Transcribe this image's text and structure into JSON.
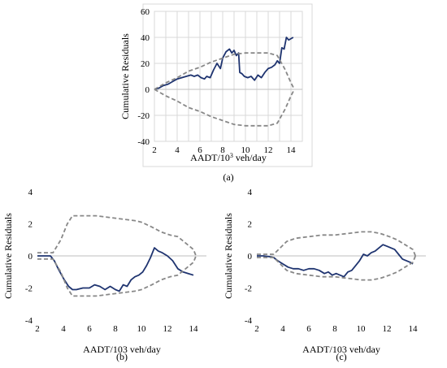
{
  "chart_data": [
    {
      "panel_label": "(a)",
      "type": "line",
      "xlabel_parts": [
        "AADT/10",
        "3",
        " veh/day"
      ],
      "ylabel": "Cumulative Residuals",
      "xlim": [
        2,
        15
      ],
      "ylim": [
        -40,
        60
      ],
      "xticks": [
        2,
        4,
        6,
        8,
        10,
        12,
        14
      ],
      "yticks": [
        -40,
        -20,
        0,
        20,
        40,
        60
      ],
      "grid": true,
      "series": [
        {
          "role": "cumulative-residuals",
          "style": "solid",
          "color": "#1f3470",
          "x": [
            2.0,
            2.4,
            2.8,
            3.2,
            3.6,
            4.0,
            4.4,
            4.8,
            5.2,
            5.5,
            5.8,
            6.1,
            6.4,
            6.6,
            6.9,
            7.2,
            7.5,
            7.8,
            8.0,
            8.3,
            8.6,
            8.8,
            9.0,
            9.2,
            9.4,
            9.5,
            9.7,
            9.9,
            10.2,
            10.5,
            10.8,
            11.1,
            11.4,
            11.7,
            12.0,
            12.3,
            12.6,
            12.8,
            13.0,
            13.2,
            13.4,
            13.6,
            13.8,
            14.0,
            14.2
          ],
          "y": [
            0,
            1,
            3,
            4,
            6,
            8,
            9,
            10,
            11,
            10,
            11,
            9,
            8,
            10,
            9,
            15,
            20,
            16,
            24,
            29,
            31,
            28,
            30,
            26,
            28,
            13,
            12,
            10,
            9,
            10,
            7,
            11,
            9,
            13,
            16,
            17,
            19,
            22,
            20,
            32,
            31,
            40,
            38,
            39,
            40
          ]
        },
        {
          "role": "upper-bound",
          "style": "dashed",
          "color": "#888888",
          "x": [
            2.0,
            3.0,
            4.0,
            5.0,
            6.0,
            7.0,
            8.0,
            9.0,
            10.0,
            11.0,
            12.0,
            12.8,
            13.5,
            14.0,
            14.3
          ],
          "y": [
            0,
            5,
            9,
            14,
            17,
            21,
            24,
            27,
            28,
            28,
            28,
            26,
            15,
            5,
            0
          ]
        },
        {
          "role": "lower-bound",
          "style": "dashed",
          "color": "#888888",
          "x": [
            2.0,
            3.0,
            4.0,
            5.0,
            6.0,
            7.0,
            8.0,
            9.0,
            10.0,
            11.0,
            12.0,
            12.8,
            13.5,
            14.0,
            14.3
          ],
          "y": [
            0,
            -5,
            -9,
            -14,
            -17,
            -21,
            -24,
            -27,
            -28,
            -28,
            -28,
            -26,
            -15,
            -5,
            0
          ]
        }
      ]
    },
    {
      "panel_label": "(b)",
      "type": "line",
      "xlabel_parts": [
        "AADT/103 veh/day"
      ],
      "ylabel": "Cumulative Residuals",
      "xlim": [
        2,
        15
      ],
      "ylim": [
        -4,
        4
      ],
      "xticks": [
        2,
        4,
        6,
        8,
        10,
        12,
        14
      ],
      "yticks": [
        -4,
        -2,
        0,
        2,
        4
      ],
      "grid": false,
      "series": [
        {
          "role": "cumulative-residuals",
          "style": "solid",
          "color": "#1f3470",
          "x": [
            2.0,
            2.5,
            3.0,
            3.3,
            3.6,
            4.0,
            4.4,
            4.7,
            5.0,
            5.5,
            6.0,
            6.4,
            6.8,
            7.2,
            7.6,
            8.0,
            8.3,
            8.6,
            8.9,
            9.2,
            9.5,
            9.8,
            10.1,
            10.4,
            10.7,
            11.0,
            11.3,
            11.6,
            12.0,
            12.4,
            12.8,
            13.2,
            13.6,
            14.0
          ],
          "y": [
            0,
            0,
            0,
            -0.3,
            -0.8,
            -1.4,
            -1.9,
            -2.1,
            -2.1,
            -2.0,
            -2.0,
            -1.8,
            -1.9,
            -2.1,
            -1.9,
            -2.1,
            -2.2,
            -1.8,
            -1.9,
            -1.5,
            -1.3,
            -1.2,
            -1.0,
            -0.6,
            -0.1,
            0.5,
            0.3,
            0.2,
            0.0,
            -0.3,
            -0.8,
            -1.0,
            -1.1,
            -1.2
          ]
        },
        {
          "role": "upper-bound",
          "style": "dashed",
          "color": "#888888",
          "x": [
            2.0,
            2.8,
            3.2,
            3.8,
            4.3,
            4.7,
            5.5,
            6.5,
            7.5,
            8.5,
            9.5,
            10.0,
            10.8,
            11.5,
            12.2,
            12.8,
            13.4,
            14.0,
            14.2
          ],
          "y": [
            0.2,
            0.2,
            0.2,
            1.0,
            2.0,
            2.5,
            2.5,
            2.5,
            2.4,
            2.3,
            2.2,
            2.1,
            1.8,
            1.5,
            1.3,
            1.2,
            0.8,
            0.4,
            0
          ]
        },
        {
          "role": "lower-bound",
          "style": "dashed",
          "color": "#888888",
          "x": [
            2.0,
            2.8,
            3.2,
            3.8,
            4.3,
            4.7,
            5.5,
            6.5,
            7.5,
            8.5,
            9.5,
            10.0,
            10.8,
            11.5,
            12.2,
            12.8,
            13.4,
            14.0,
            14.2
          ],
          "y": [
            -0.2,
            -0.2,
            -0.2,
            -1.0,
            -2.0,
            -2.5,
            -2.5,
            -2.5,
            -2.4,
            -2.3,
            -2.2,
            -2.1,
            -1.8,
            -1.5,
            -1.3,
            -1.2,
            -0.8,
            -0.4,
            0
          ]
        }
      ]
    },
    {
      "panel_label": "(c)",
      "type": "line",
      "xlabel_parts": [
        "AADT/103 veh/day"
      ],
      "ylabel": "Cumulative Residuals",
      "xlim": [
        2,
        15
      ],
      "ylim": [
        -4,
        4
      ],
      "xticks": [
        2,
        4,
        6,
        8,
        10,
        12,
        14
      ],
      "yticks": [
        -4,
        -2,
        0,
        2,
        4
      ],
      "grid": false,
      "series": [
        {
          "role": "cumulative-residuals",
          "style": "solid",
          "color": "#1f3470",
          "x": [
            2.0,
            2.5,
            3.0,
            3.3,
            3.6,
            4.0,
            4.4,
            4.8,
            5.2,
            5.6,
            6.0,
            6.4,
            6.8,
            7.2,
            7.5,
            7.8,
            8.1,
            8.4,
            8.7,
            9.0,
            9.3,
            9.6,
            9.9,
            10.2,
            10.5,
            10.8,
            11.1,
            11.4,
            11.7,
            12.0,
            12.3,
            12.6,
            12.9,
            13.2,
            13.5,
            13.8,
            14.0
          ],
          "y": [
            0,
            0,
            -0.05,
            -0.1,
            -0.3,
            -0.5,
            -0.7,
            -0.8,
            -0.8,
            -0.9,
            -0.8,
            -0.8,
            -0.9,
            -1.1,
            -1.0,
            -1.2,
            -1.1,
            -1.2,
            -1.3,
            -1.0,
            -0.9,
            -0.6,
            -0.3,
            0.1,
            0.0,
            0.2,
            0.3,
            0.5,
            0.7,
            0.6,
            0.5,
            0.4,
            0.1,
            -0.2,
            -0.3,
            -0.4,
            -0.5
          ]
        },
        {
          "role": "upper-bound",
          "style": "dashed",
          "color": "#888888",
          "x": [
            2.0,
            2.8,
            3.3,
            3.8,
            4.3,
            5.0,
            6.0,
            7.0,
            8.0,
            9.0,
            10.0,
            10.8,
            11.5,
            12.2,
            12.8,
            13.4,
            14.0,
            14.2
          ],
          "y": [
            0.1,
            0.1,
            0.1,
            0.5,
            0.9,
            1.1,
            1.2,
            1.3,
            1.3,
            1.4,
            1.5,
            1.5,
            1.4,
            1.2,
            1.0,
            0.7,
            0.4,
            0
          ]
        },
        {
          "role": "lower-bound",
          "style": "dashed",
          "color": "#888888",
          "x": [
            2.0,
            2.8,
            3.3,
            3.8,
            4.3,
            5.0,
            6.0,
            7.0,
            8.0,
            9.0,
            10.0,
            10.8,
            11.5,
            12.2,
            12.8,
            13.4,
            14.0,
            14.2
          ],
          "y": [
            -0.1,
            -0.1,
            -0.1,
            -0.5,
            -0.9,
            -1.1,
            -1.2,
            -1.3,
            -1.3,
            -1.4,
            -1.5,
            -1.5,
            -1.4,
            -1.2,
            -1.0,
            -0.7,
            -0.4,
            0
          ]
        }
      ]
    }
  ]
}
